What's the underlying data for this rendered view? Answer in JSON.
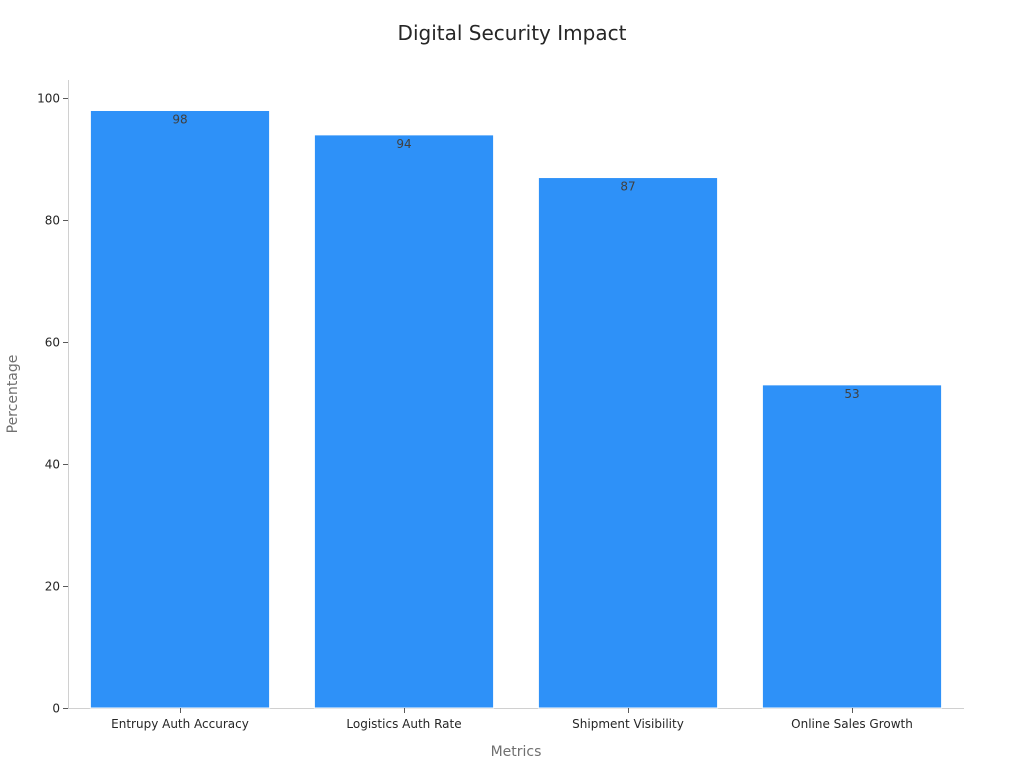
{
  "chart_data": {
    "type": "bar",
    "title": "Digital Security Impact",
    "xlabel": "Metrics",
    "ylabel": "Percentage",
    "categories": [
      "Entrupy Auth Accuracy",
      "Logistics Auth Rate",
      "Shipment Visibility",
      "Online Sales Growth"
    ],
    "values": [
      98,
      94,
      87,
      53
    ],
    "ylim": [
      0,
      103
    ],
    "yticks": [
      0,
      20,
      40,
      60,
      80,
      100
    ],
    "grid": false,
    "bar_color": "#2e91f8"
  }
}
